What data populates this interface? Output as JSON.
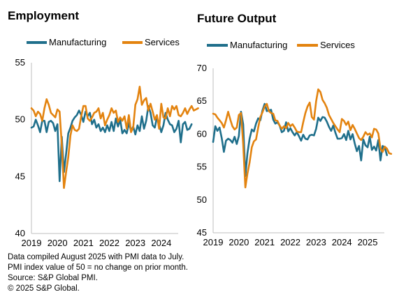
{
  "colors": {
    "manufacturing": "#1f6f8b",
    "services": "#e3830f",
    "axis": "#bfbfbf"
  },
  "footnotes": [
    "Data compiled August 2025 with PMI data to July.",
    "PMI index value of 50 = no change on prior month.",
    "Source: S&P Global PMI.",
    "© 2025 S&P Global."
  ],
  "chart_data": [
    {
      "type": "line",
      "title": "Employment",
      "xlabel": "",
      "ylabel": "",
      "x_start": "2019-01",
      "x_ticks": [
        "2019",
        "2020",
        "2021",
        "2022",
        "2023",
        "2024"
      ],
      "ylim": [
        40,
        55
      ],
      "y_ticks": [
        40,
        45,
        50,
        55
      ],
      "grid": false,
      "legend": "top",
      "series": [
        {
          "name": "Manufacturing",
          "values": [
            49.3,
            49.4,
            50.0,
            49.5,
            48.9,
            49.9,
            49.9,
            48.9,
            49.8,
            49.9,
            49.7,
            49.0,
            49.6,
            44.6,
            48.5,
            45.4,
            47.0,
            48.8,
            49.3,
            49.9,
            50.2,
            50.4,
            50.8,
            50.4,
            49.8,
            50.7,
            50.3,
            50.6,
            49.6,
            50.0,
            49.3,
            49.6,
            49.0,
            49.3,
            48.9,
            49.5,
            49.0,
            49.8,
            49.0,
            50.1,
            49.4,
            50.0,
            48.8,
            49.1,
            48.8,
            49.7,
            49.0,
            49.4,
            48.7,
            49.5,
            49.0,
            50.3,
            49.2,
            49.9,
            51.2,
            50.6,
            49.5,
            49.3,
            50.2,
            49.6,
            48.9,
            49.5,
            50.6,
            50.0,
            49.6,
            49.5,
            48.9,
            49.2,
            49.9,
            48.0,
            49.6,
            49.8,
            49.1,
            49.2,
            49.6
          ]
        },
        {
          "name": "Services",
          "values": [
            51.0,
            50.8,
            50.3,
            50.7,
            50.5,
            49.9,
            51.0,
            51.8,
            51.3,
            50.6,
            50.4,
            50.2,
            50.9,
            50.7,
            47.8,
            44.0,
            45.4,
            46.7,
            48.6,
            49.5,
            49.1,
            49.0,
            49.2,
            50.3,
            51.2,
            51.2,
            50.1,
            49.9,
            50.2,
            50.6,
            50.7,
            51.0,
            50.1,
            50.6,
            49.5,
            50.0,
            50.4,
            51.0,
            50.6,
            50.8,
            49.8,
            50.2,
            49.9,
            50.3,
            49.2,
            50.4,
            48.9,
            49.3,
            51.3,
            51.8,
            52.9,
            51.3,
            51.7,
            51.9,
            50.8,
            51.4,
            50.7,
            50.0,
            50.4,
            49.2,
            51.4,
            50.2,
            50.1,
            51.0,
            50.3,
            51.2,
            50.9,
            51.2,
            50.4,
            50.3,
            50.6,
            51.0,
            50.5,
            50.9,
            51.2,
            50.8,
            50.9,
            51.0
          ]
        }
      ]
    },
    {
      "type": "line",
      "title": "Future Output",
      "xlabel": "",
      "ylabel": "",
      "x_start": "2019-01",
      "x_ticks": [
        "2019",
        "2020",
        "2021",
        "2022",
        "2023",
        "2024",
        "2025"
      ],
      "ylim": [
        45,
        70
      ],
      "y_ticks": [
        45,
        50,
        55,
        60,
        65,
        70
      ],
      "grid": false,
      "legend": "top",
      "series": [
        {
          "name": "Manufacturing",
          "values": [
            58.8,
            61.2,
            60.5,
            61.0,
            59.4,
            57.3,
            59.0,
            59.3,
            59.1,
            58.7,
            59.6,
            58.5,
            59.7,
            63.4,
            61.5,
            53.6,
            57.1,
            59.3,
            60.7,
            60.4,
            61.6,
            62.4,
            62.1,
            63.6,
            64.6,
            63.5,
            63.6,
            63.7,
            62.2,
            61.6,
            61.8,
            61.3,
            60.3,
            60.5,
            61.8,
            60.4,
            60.9,
            60.3,
            59.8,
            60.3,
            59.7,
            59.0,
            59.9,
            59.3,
            59.2,
            59.8,
            59.9,
            59.8,
            60.8,
            62.5,
            62.0,
            62.6,
            62.5,
            61.9,
            61.1,
            60.5,
            61.3,
            60.2,
            59.3,
            59.3,
            59.4,
            60.0,
            59.1,
            60.5,
            59.2,
            60.0,
            58.6,
            57.4,
            58.2,
            56.0,
            59.2,
            58.3,
            58.0,
            59.6,
            57.6,
            58.1,
            57.5,
            59.1,
            56.0,
            58.2,
            58.0,
            56.8
          ]
        },
        {
          "name": "Services",
          "values": [
            63.1,
            63.0,
            62.5,
            62.1,
            61.7,
            61.0,
            62.1,
            63.4,
            62.2,
            61.2,
            60.7,
            61.0,
            62.9,
            63.2,
            58.5,
            51.9,
            54.0,
            55.7,
            58.0,
            58.9,
            59.2,
            61.0,
            62.6,
            63.3,
            64.2,
            64.6,
            63.5,
            63.2,
            63.1,
            62.1,
            62.0,
            61.3,
            60.8,
            61.2,
            60.9,
            61.7,
            61.2,
            61.5,
            61.0,
            60.4,
            60.3,
            60.3,
            61.8,
            63.2,
            64.2,
            64.8,
            62.6,
            62.2,
            65.0,
            66.8,
            66.4,
            65.2,
            64.7,
            64.0,
            62.9,
            62.3,
            61.7,
            61.2,
            60.7,
            60.3,
            62.3,
            62.0,
            61.4,
            61.9,
            60.6,
            61.4,
            60.8,
            60.1,
            59.4,
            59.1,
            59.6,
            60.3,
            59.9,
            60.1,
            59.5,
            60.8,
            60.7,
            60.1,
            57.8,
            57.3,
            58.1,
            57.8,
            57.1,
            57.0
          ]
        }
      ]
    }
  ]
}
